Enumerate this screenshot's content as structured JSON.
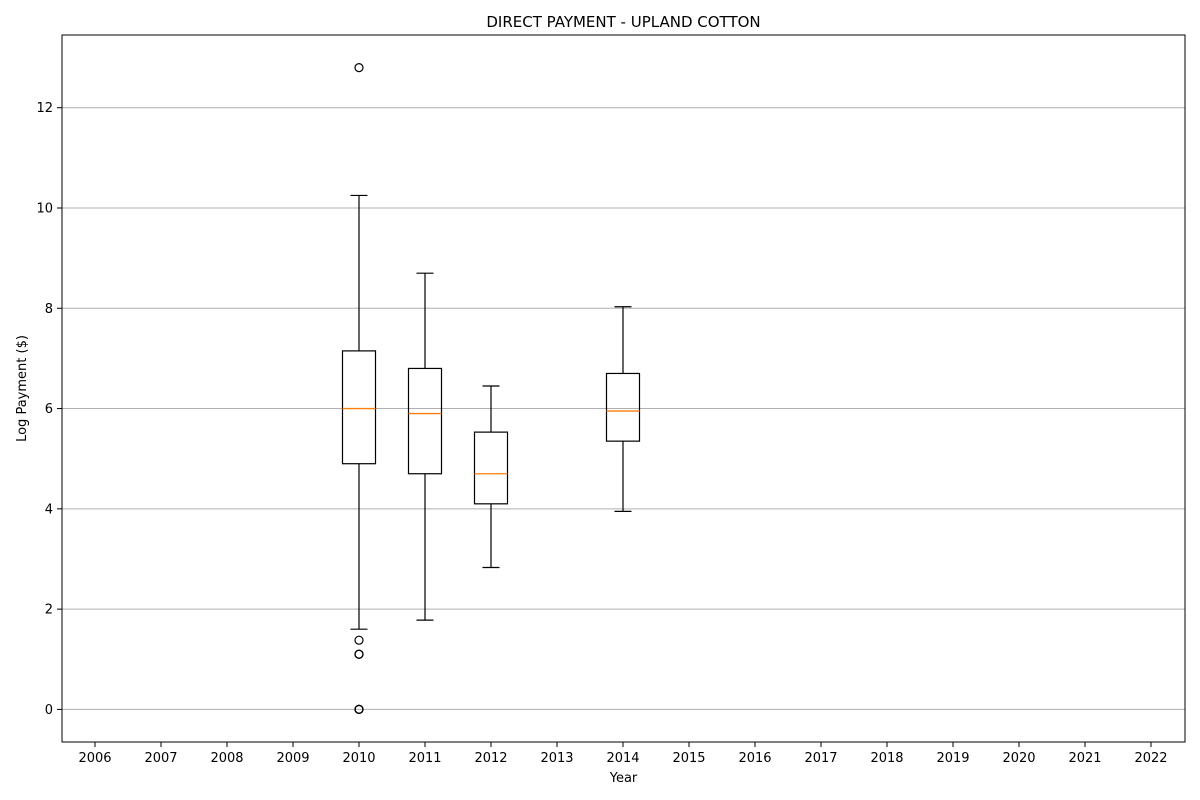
{
  "chart_data": {
    "type": "box",
    "title": "DIRECT PAYMENT - UPLAND COTTON",
    "xlabel": "Year",
    "ylabel": "Log Payment ($)",
    "categories": [
      "2006",
      "2007",
      "2008",
      "2009",
      "2010",
      "2011",
      "2012",
      "2013",
      "2014",
      "2015",
      "2016",
      "2017",
      "2018",
      "2019",
      "2020",
      "2021",
      "2022"
    ],
    "ylim": [
      -0.65,
      13.45
    ],
    "yticks": [
      0,
      2,
      4,
      6,
      8,
      10,
      12
    ],
    "grid": "y-major",
    "colors": {
      "box": "#000000",
      "median": "#ff7f0e",
      "grid": "#b0b0b0"
    },
    "boxes": [
      {
        "category": "2010",
        "whisker_low": 1.6,
        "q1": 4.9,
        "median": 6.0,
        "q3": 7.15,
        "whisker_high": 10.25,
        "outliers": [
          12.8,
          1.38,
          1.1,
          1.1,
          0,
          0,
          0
        ]
      },
      {
        "category": "2011",
        "whisker_low": 1.78,
        "q1": 4.7,
        "median": 5.9,
        "q3": 6.8,
        "whisker_high": 8.7,
        "outliers": []
      },
      {
        "category": "2012",
        "whisker_low": 2.83,
        "q1": 4.1,
        "median": 4.7,
        "q3": 5.53,
        "whisker_high": 6.45,
        "outliers": []
      },
      {
        "category": "2014",
        "whisker_low": 3.95,
        "q1": 5.35,
        "median": 5.95,
        "q3": 6.7,
        "whisker_high": 8.03,
        "outliers": []
      }
    ]
  }
}
